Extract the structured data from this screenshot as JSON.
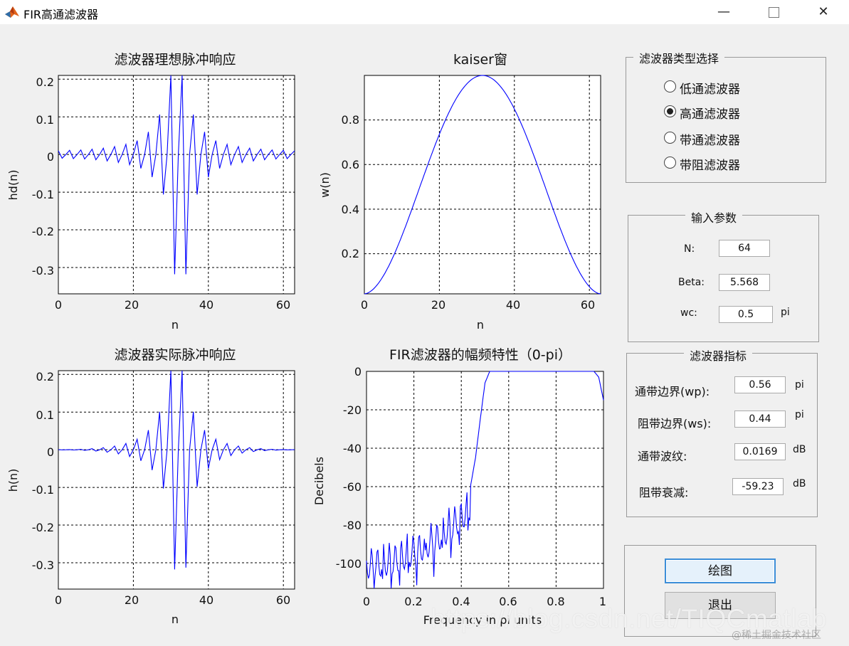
{
  "window": {
    "title": "FIR高通滤波器",
    "min_glyph": "—",
    "close_glyph": "✕"
  },
  "plots": {
    "hd": {
      "title": "滤波器理想脉冲响应",
      "xlabel": "n",
      "ylabel": "hd(n)",
      "xticks": [
        "0",
        "20",
        "40",
        "60"
      ],
      "yticks": [
        "0.2",
        "0.1",
        "0",
        "-0.1",
        "-0.2",
        "-0.3"
      ]
    },
    "win": {
      "title": "kaiser窗",
      "xlabel": "n",
      "ylabel": "w(n)",
      "xticks": [
        "0",
        "20",
        "40",
        "60"
      ],
      "yticks": [
        "0.8",
        "0.6",
        "0.4",
        "0.2"
      ]
    },
    "h": {
      "title": "滤波器实际脉冲响应",
      "xlabel": "n",
      "ylabel": "h(n)",
      "xticks": [
        "0",
        "20",
        "40",
        "60"
      ],
      "yticks": [
        "0.2",
        "0.1",
        "0",
        "-0.1",
        "-0.2",
        "-0.3"
      ]
    },
    "mag": {
      "title": "FIR滤波器的幅频特性（0-pi）",
      "xlabel": "Frequency in pi units",
      "ylabel": "Decibels",
      "xticks": [
        "0",
        "0.2",
        "0.4",
        "0.6",
        "0.8",
        "1"
      ],
      "yticks": [
        "0",
        "-20",
        "-40",
        "-60",
        "-80",
        "-100"
      ]
    }
  },
  "filter_type": {
    "title": "滤波器类型选择",
    "options": [
      {
        "label": "低通滤波器",
        "selected": false
      },
      {
        "label": "高通滤波器",
        "selected": true
      },
      {
        "label": "带通滤波器",
        "selected": false
      },
      {
        "label": "带阻滤波器",
        "selected": false
      }
    ]
  },
  "params": {
    "title": "输入参数",
    "n_label": "N:",
    "n_value": "64",
    "beta_label": "Beta:",
    "beta_value": "5.568",
    "wc_label": "wc:",
    "wc_value": "0.5",
    "wc_unit": "pi"
  },
  "metrics": {
    "title": "滤波器指标",
    "wp_label": "通带边界(wp):",
    "wp_value": "0.56",
    "wp_unit": "pi",
    "ws_label": "阻带边界(ws):",
    "ws_value": "0.44",
    "ws_unit": "pi",
    "ripple_label": "通带波纹:",
    "ripple_value": "0.0169",
    "ripple_unit": "dB",
    "atten_label": "阻带衰减:",
    "atten_value": "-59.23",
    "atten_unit": "dB"
  },
  "buttons": {
    "draw": "绘图",
    "exit": "退出"
  },
  "watermark": "https://blog.csdn.net/TIQCmatlab",
  "watermark2": "@稀土掘金技术社区",
  "colors": {
    "line": "#0000ff",
    "grid": "#000000",
    "panel_bg": "#f0f0f0"
  },
  "chart_data": [
    {
      "type": "line",
      "title": "滤波器理想脉冲响应",
      "xlabel": "n",
      "ylabel": "hd(n)",
      "xlim": [
        0,
        63
      ],
      "ylim": [
        -0.37,
        0.21
      ],
      "grid": true,
      "series": [
        {
          "description": "ideal highpass impulse response, wc=0.5pi, N=64",
          "x": [
            0,
            1,
            2,
            3,
            4,
            5,
            6,
            7,
            8,
            9,
            10,
            11,
            12,
            13,
            14,
            15,
            16,
            17,
            18,
            19,
            20,
            21,
            22,
            23,
            24,
            25,
            26,
            27,
            28,
            29,
            30,
            31,
            32,
            33,
            34,
            35,
            36,
            37,
            38,
            39,
            40,
            41,
            42,
            43,
            44,
            45,
            46,
            47,
            48,
            49,
            50,
            51,
            52,
            53,
            54,
            55,
            56,
            57,
            58,
            59,
            60,
            61,
            62,
            63
          ],
          "y": [
            0.01,
            -0.01,
            0.0,
            0.011,
            -0.011,
            0.0,
            0.012,
            -0.012,
            0.0,
            0.014,
            -0.014,
            0.0,
            0.017,
            -0.017,
            0.0,
            0.021,
            -0.021,
            0.0,
            0.027,
            -0.027,
            0.0,
            0.037,
            -0.037,
            0.0,
            0.06,
            -0.06,
            0.0,
            0.106,
            -0.106,
            0.0,
            0.318,
            -0.318,
            0.0,
            0.318,
            -0.318,
            0.0,
            0.106,
            -0.106,
            0.0,
            0.06,
            -0.06,
            0.0,
            0.037,
            -0.037,
            0.0,
            0.027,
            -0.027,
            0.0,
            0.021,
            -0.021,
            0.0,
            0.017,
            -0.017,
            0.0,
            0.014,
            -0.014,
            0.0,
            0.012,
            -0.012,
            0.0,
            0.011,
            -0.011,
            0.0,
            0.01
          ]
        }
      ]
    },
    {
      "type": "line",
      "title": "kaiser窗",
      "xlabel": "n",
      "ylabel": "w(n)",
      "xlim": [
        0,
        63
      ],
      "ylim": [
        0.02,
        1.0
      ],
      "grid": true,
      "series": [
        {
          "description": "kaiser window beta=5.568",
          "x": [
            0,
            4,
            8,
            12,
            16,
            20,
            24,
            28,
            32,
            36,
            40,
            44,
            48,
            52,
            56,
            60,
            63
          ],
          "y": [
            0.02,
            0.08,
            0.19,
            0.33,
            0.5,
            0.67,
            0.82,
            0.95,
            1.0,
            0.95,
            0.82,
            0.67,
            0.5,
            0.33,
            0.19,
            0.08,
            0.02
          ]
        }
      ]
    },
    {
      "type": "line",
      "title": "滤波器实际脉冲响应",
      "xlabel": "n",
      "ylabel": "h(n)",
      "xlim": [
        0,
        63
      ],
      "ylim": [
        -0.37,
        0.21
      ],
      "grid": true,
      "series": [
        {
          "description": "windowed impulse response"
        }
      ]
    },
    {
      "type": "line",
      "title": "FIR滤波器的幅频特性（0-pi）",
      "xlabel": "Frequency in pi units",
      "ylabel": "Decibels",
      "xlim": [
        0,
        1
      ],
      "ylim": [
        -113,
        0
      ],
      "grid": true,
      "series": [
        {
          "description": "magnitude response in dB",
          "x": [
            0.0,
            0.1,
            0.2,
            0.3,
            0.4,
            0.44,
            0.46,
            0.48,
            0.5,
            0.52,
            0.56,
            0.7,
            0.9,
            0.96,
            0.98,
            1.0
          ],
          "y": [
            -90,
            -88,
            -83,
            -76,
            -65,
            -59,
            -45,
            -25,
            -6,
            0,
            0,
            0,
            0,
            0,
            -3,
            -15
          ]
        }
      ]
    }
  ]
}
